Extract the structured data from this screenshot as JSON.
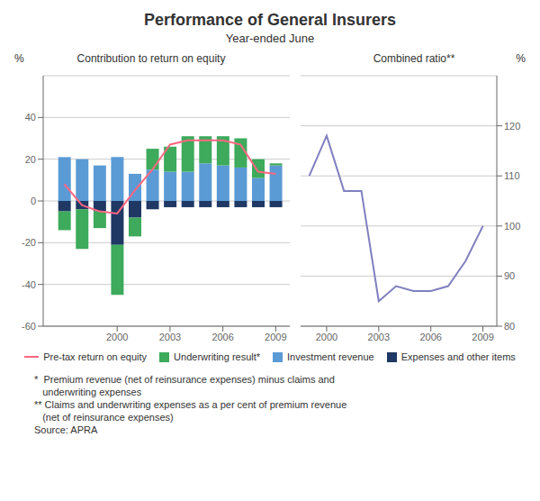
{
  "title": "Performance of General Insurers",
  "subtitle": "Year-ended June",
  "annotations": [
    "*  Premium revenue (net of reinsurance expenses) minus claims and",
    "   underwriting expenses",
    "** Claims and underwriting expenses as a per cent of premium revenue",
    "   (net of reinsurance expenses)",
    "Source: APRA"
  ],
  "chart_data": [
    {
      "type": "bar",
      "stacked": true,
      "title": "Contribution to return on equity",
      "ylabel": "%",
      "x": [
        1997,
        1998,
        1999,
        2000,
        2001,
        2002,
        2003,
        2004,
        2005,
        2006,
        2007,
        2008,
        2009
      ],
      "xlim": [
        1995.8,
        2009.8
      ],
      "xticks": [
        2000,
        2003,
        2006,
        2009
      ],
      "ylim": [
        -60,
        60
      ],
      "yticks": [
        -60,
        -40,
        -20,
        0,
        20,
        40
      ],
      "grid": true,
      "legend": "bottom",
      "series": [
        {
          "name": "Pre-tax return on equity",
          "type": "line",
          "color": "#FF6680",
          "values": [
            8,
            -2,
            -5,
            -6,
            5,
            15,
            27,
            29,
            29,
            29,
            27,
            14,
            13
          ]
        },
        {
          "name": "Underwriting result*",
          "type": "bar",
          "color": "#3DAA5C",
          "values": [
            -9,
            -19,
            -8,
            -24,
            -9,
            10,
            12,
            17,
            13,
            14,
            14,
            9,
            1
          ]
        },
        {
          "name": "Investment revenue",
          "type": "bar",
          "color": "#5B9BD5",
          "values": [
            21,
            20,
            17,
            21,
            13,
            15,
            14,
            14,
            18,
            17,
            16,
            11,
            17
          ]
        },
        {
          "name": "Expenses and other items",
          "type": "bar",
          "color": "#1F3864",
          "values": [
            -5,
            -4,
            -5,
            -21,
            -8,
            -4,
            -3,
            -3,
            -3,
            -3,
            -3,
            -3,
            -3
          ]
        }
      ]
    },
    {
      "type": "line",
      "title": "Combined ratio**",
      "ylabel": "%",
      "x": [
        1999,
        2000,
        2001,
        2002,
        2003,
        2004,
        2005,
        2006,
        2007,
        2008,
        2009
      ],
      "xlim": [
        1998.5,
        2009.8
      ],
      "xticks": [
        2000,
        2003,
        2006,
        2009
      ],
      "ylim": [
        80,
        130
      ],
      "yticks": [
        80,
        90,
        100,
        110,
        120
      ],
      "grid": true,
      "series": [
        {
          "type": "line",
          "color": "#8080C0",
          "values": [
            110,
            118,
            107,
            107,
            85,
            88,
            87,
            87,
            88,
            93,
            100
          ]
        }
      ]
    }
  ]
}
